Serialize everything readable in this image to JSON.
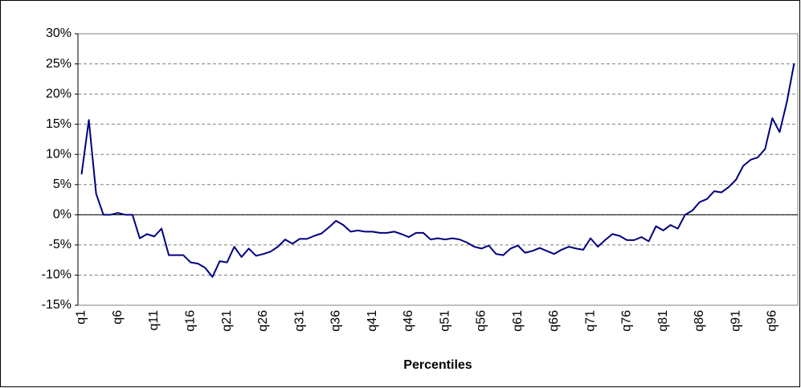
{
  "chart_data": {
    "type": "line",
    "x_label": "Percentiles",
    "categories": [
      "q1",
      null,
      null,
      null,
      null,
      "q6",
      null,
      null,
      null,
      null,
      "q11",
      null,
      null,
      null,
      null,
      "q16",
      null,
      null,
      null,
      null,
      "q21",
      null,
      null,
      null,
      null,
      "q26",
      null,
      null,
      null,
      null,
      "q31",
      null,
      null,
      null,
      null,
      "q36",
      null,
      null,
      null,
      null,
      "q41",
      null,
      null,
      null,
      null,
      "q46",
      null,
      null,
      null,
      null,
      "q51",
      null,
      null,
      null,
      null,
      "q56",
      null,
      null,
      null,
      null,
      "q61",
      null,
      null,
      null,
      null,
      "q66",
      null,
      null,
      null,
      null,
      "q71",
      null,
      null,
      null,
      null,
      "q76",
      null,
      null,
      null,
      null,
      "q81",
      null,
      null,
      null,
      null,
      "q86",
      null,
      null,
      null,
      null,
      "q91",
      null,
      null,
      null,
      null,
      "q96",
      null,
      null,
      null
    ],
    "values": [
      6.7,
      15.7,
      3.5,
      0,
      0,
      0.3,
      0,
      0,
      -3.9,
      -3.2,
      -3.6,
      -2.3,
      -6.7,
      -6.7,
      -6.7,
      -7.9,
      -8.1,
      -8.8,
      -10.3,
      -7.7,
      -7.9,
      -5.3,
      -7.0,
      -5.6,
      -6.8,
      -6.5,
      -6.1,
      -5.3,
      -4.1,
      -4.8,
      -4.0,
      -4.0,
      -3.5,
      -3.1,
      -2.1,
      -1.0,
      -1.7,
      -2.8,
      -2.6,
      -2.8,
      -2.8,
      -3.0,
      -3.0,
      -2.8,
      -3.2,
      -3.7,
      -3.0,
      -3.0,
      -4.1,
      -3.9,
      -4.1,
      -3.9,
      -4.1,
      -4.6,
      -5.3,
      -5.6,
      -5.1,
      -6.5,
      -6.7,
      -5.6,
      -5.1,
      -6.3,
      -6.0,
      -5.5,
      -6.0,
      -6.5,
      -5.8,
      -5.3,
      -5.6,
      -5.8,
      -3.9,
      -5.3,
      -4.2,
      -3.2,
      -3.5,
      -4.2,
      -4.2,
      -3.7,
      -4.4,
      -1.9,
      -2.6,
      -1.7,
      -2.3,
      0,
      0.7,
      2.1,
      2.6,
      3.9,
      3.7,
      4.6,
      5.8,
      8.1,
      9.1,
      9.5,
      10.9,
      16.0,
      13.7,
      18.7,
      25.1
    ],
    "color": "#000080",
    "ylim": [
      -15,
      30
    ],
    "yticks": [
      {
        "value": -15,
        "label": "-15%"
      },
      {
        "value": -10,
        "label": "-10%"
      },
      {
        "value": -5,
        "label": "-5%"
      },
      {
        "value": 0,
        "label": "0%"
      },
      {
        "value": 5,
        "label": "5%"
      },
      {
        "value": 10,
        "label": "10%"
      },
      {
        "value": 15,
        "label": "15%"
      },
      {
        "value": 20,
        "label": "20%"
      },
      {
        "value": 25,
        "label": "25%"
      },
      {
        "value": 30,
        "label": "30%"
      }
    ],
    "grid": true
  }
}
